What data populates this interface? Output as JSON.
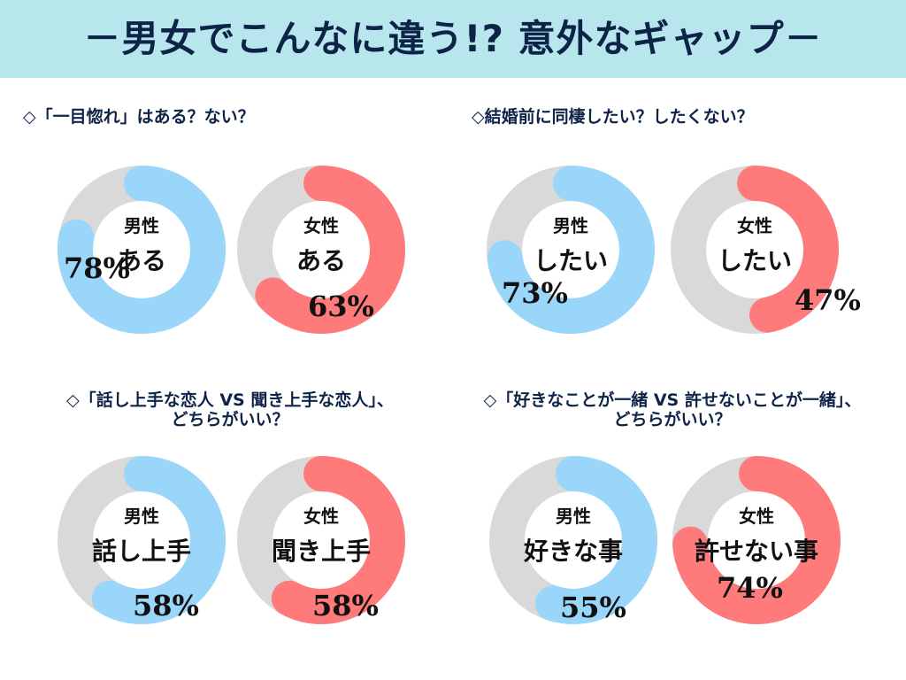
{
  "header": {
    "title": "－男女でこんなに違う!? 意外なギャップ－"
  },
  "colors": {
    "banner": "#b7e7ec",
    "male": "#99d6fa",
    "female": "#ff7b7b",
    "track": "#d9d9d9",
    "text": "#0d2347"
  },
  "questions": [
    {
      "line1": "◇「一目惚れ」はある？ない？",
      "line2": ""
    },
    {
      "line1": "◇結婚前に同棲したい？したくない？",
      "line2": ""
    },
    {
      "line1": "◇「話し上手な恋人 VS 聞き上手な恋人」、",
      "line2": "どちらがいい？"
    },
    {
      "line1": "◇「好きなことが一緒 VS 許せないことが一緒」、",
      "line2": "どちらがいい？"
    }
  ],
  "chart_data": [
    {
      "type": "pie",
      "title": "「一目惚れ」はある？ない？",
      "gender": "男性",
      "answer": "ある",
      "value": 78,
      "label": "78%",
      "series": "male"
    },
    {
      "type": "pie",
      "title": "「一目惚れ」はある？ない？",
      "gender": "女性",
      "answer": "ある",
      "value": 63,
      "label": "63%",
      "series": "female"
    },
    {
      "type": "pie",
      "title": "結婚前に同棲したい？したくない？",
      "gender": "男性",
      "answer": "したい",
      "value": 73,
      "label": "73%",
      "series": "male"
    },
    {
      "type": "pie",
      "title": "結婚前に同棲したい？したくない？",
      "gender": "女性",
      "answer": "したい",
      "value": 47,
      "label": "47%",
      "series": "female"
    },
    {
      "type": "pie",
      "title": "話し上手な恋人 VS 聞き上手な恋人",
      "gender": "男性",
      "answer": "話し上手",
      "value": 58,
      "label": "58%",
      "series": "male"
    },
    {
      "type": "pie",
      "title": "話し上手な恋人 VS 聞き上手な恋人",
      "gender": "女性",
      "answer": "聞き上手",
      "value": 58,
      "label": "58%",
      "series": "female"
    },
    {
      "type": "pie",
      "title": "好きなことが一緒 VS 許せないことが一緒",
      "gender": "男性",
      "answer": "好きな事",
      "value": 55,
      "label": "55%",
      "series": "male"
    },
    {
      "type": "pie",
      "title": "好きなことが一緒 VS 許せないことが一緒",
      "gender": "女性",
      "answer": "許せない事",
      "value": 74,
      "label": "74%",
      "series": "female"
    }
  ]
}
